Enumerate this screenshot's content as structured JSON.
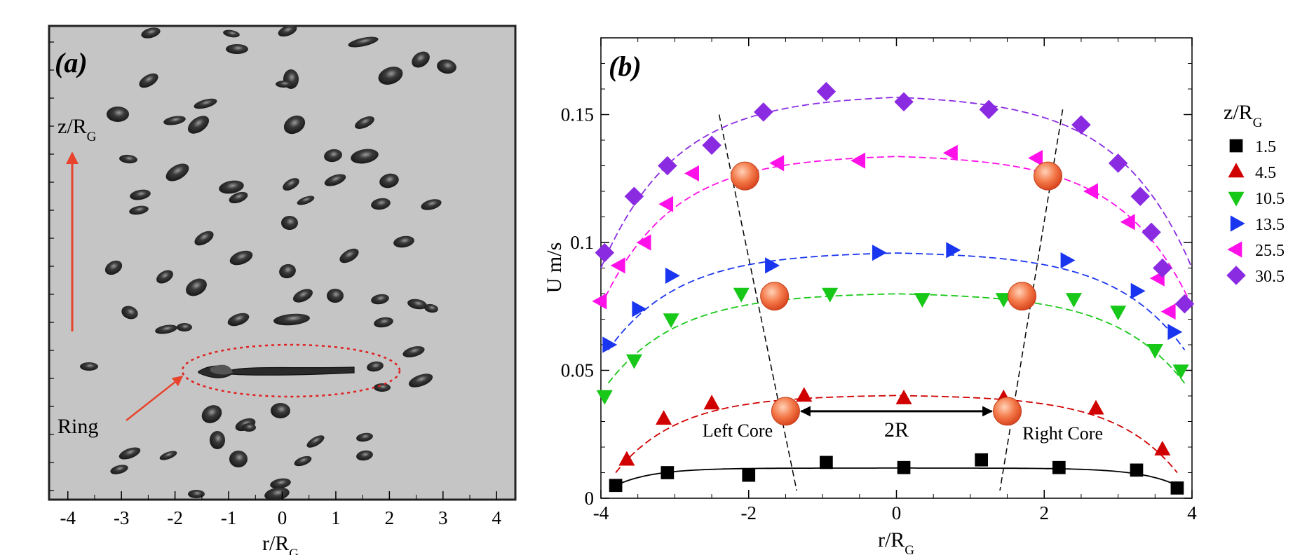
{
  "chart_data": [
    {
      "panel": "(a)",
      "type": "image",
      "xlabel": "r/R",
      "xlabel_sub": "G",
      "ylabel": "z/R",
      "ylabel_sub": "G",
      "xticks": [
        -4,
        -3,
        -2,
        -1,
        0,
        1,
        2,
        3,
        4
      ],
      "xlim": [
        -4.35,
        4.35
      ],
      "annotations": {
        "ring": "Ring"
      },
      "colors": {
        "background": "#c5c5c5",
        "arrow": "#e8432c",
        "ring_outline": "#e02020"
      }
    },
    {
      "panel": "(b)",
      "type": "scatter",
      "xlabel": "r/R",
      "xlabel_sub": "G",
      "ylabel": "U m/s",
      "xlim": [
        -4,
        4
      ],
      "ylim": [
        0,
        0.18
      ],
      "xticks": [
        -4,
        -2,
        0,
        2,
        4
      ],
      "yticks": [
        0,
        0.05,
        0.1,
        0.15
      ],
      "ytick_labels": [
        "0",
        "0.05",
        "0.1",
        "0.15"
      ],
      "legend": {
        "title": "z/R",
        "title_sub": "G",
        "position": "right"
      },
      "series": [
        {
          "name": "1.5",
          "marker": "square",
          "color": "#000000",
          "line": "solid",
          "points": [
            [
              -3.8,
              0.005
            ],
            [
              -3.1,
              0.01
            ],
            [
              -2.0,
              0.009
            ],
            [
              -0.95,
              0.014
            ],
            [
              0.1,
              0.012
            ],
            [
              1.15,
              0.015
            ],
            [
              2.2,
              0.012
            ],
            [
              3.25,
              0.011
            ],
            [
              3.8,
              0.004
            ]
          ],
          "fit": {
            "peak": 0.0118,
            "edge": 0.005,
            "span": 3.8,
            "w": 0.5
          }
        },
        {
          "name": "4.5",
          "marker": "triangle-up",
          "color": "#d00000",
          "line": "dashed",
          "points": [
            [
              -3.65,
              0.015
            ],
            [
              -3.15,
              0.031
            ],
            [
              -2.5,
              0.037
            ],
            [
              -1.25,
              0.04
            ],
            [
              0.1,
              0.039
            ],
            [
              1.45,
              0.039
            ],
            [
              2.7,
              0.035
            ],
            [
              3.6,
              0.019
            ]
          ],
          "fit": {
            "peak": 0.0405,
            "edge": 0.01,
            "span": 3.8,
            "w": 0.85
          }
        },
        {
          "name": "10.5",
          "marker": "triangle-down",
          "color": "#18c818",
          "line": "dashed",
          "points": [
            [
              -3.95,
              0.04
            ],
            [
              -3.55,
              0.054
            ],
            [
              -3.05,
              0.07
            ],
            [
              -2.1,
              0.08
            ],
            [
              -0.9,
              0.08
            ],
            [
              0.35,
              0.078
            ],
            [
              1.45,
              0.078
            ],
            [
              2.4,
              0.078
            ],
            [
              3.0,
              0.073
            ],
            [
              3.5,
              0.058
            ],
            [
              3.85,
              0.05
            ]
          ],
          "fit": {
            "peak": 0.0805,
            "edge": 0.045,
            "span": 3.9,
            "w": 0.95
          }
        },
        {
          "name": "13.5",
          "marker": "triangle-right",
          "color": "#1a35f0",
          "line": "dashed",
          "points": [
            [
              -3.9,
              0.06
            ],
            [
              -3.5,
              0.074
            ],
            [
              -3.05,
              0.087
            ],
            [
              -1.7,
              0.091
            ],
            [
              -0.25,
              0.096
            ],
            [
              0.75,
              0.097
            ],
            [
              2.3,
              0.093
            ],
            [
              3.25,
              0.081
            ],
            [
              3.75,
              0.065
            ]
          ],
          "fit": {
            "peak": 0.0965,
            "edge": 0.058,
            "span": 3.9,
            "w": 0.95
          }
        },
        {
          "name": "25.5",
          "marker": "triangle-left",
          "color": "#ff10e8",
          "line": "dashed",
          "points": [
            [
              -4.0,
              0.077
            ],
            [
              -3.75,
              0.091
            ],
            [
              -3.4,
              0.1
            ],
            [
              -3.1,
              0.115
            ],
            [
              -2.75,
              0.127
            ],
            [
              -1.6,
              0.131
            ],
            [
              -0.5,
              0.132
            ],
            [
              0.75,
              0.135
            ],
            [
              1.9,
              0.133
            ],
            [
              2.65,
              0.12
            ],
            [
              3.15,
              0.108
            ],
            [
              3.55,
              0.086
            ],
            [
              3.7,
              0.073
            ]
          ],
          "fit": {
            "peak": 0.1345,
            "edge": 0.075,
            "span": 4.0,
            "w": 0.95
          }
        },
        {
          "name": "30.5",
          "marker": "diamond",
          "color": "#8a2be2",
          "line": "dashed",
          "points": [
            [
              -3.95,
              0.096
            ],
            [
              -3.55,
              0.118
            ],
            [
              -3.1,
              0.13
            ],
            [
              -2.5,
              0.138
            ],
            [
              -1.8,
              0.151
            ],
            [
              -0.95,
              0.159
            ],
            [
              0.1,
              0.155
            ],
            [
              1.25,
              0.152
            ],
            [
              2.5,
              0.146
            ],
            [
              3.0,
              0.131
            ],
            [
              3.3,
              0.118
            ],
            [
              3.45,
              0.104
            ],
            [
              3.6,
              0.09
            ],
            [
              3.9,
              0.076
            ]
          ],
          "fit": {
            "peak": 0.158,
            "edge": 0.09,
            "span": 4.0,
            "w": 1.0
          }
        }
      ],
      "cores": {
        "color": "#e8582c",
        "points": [
          [
            -2.05,
            0.126
          ],
          [
            -1.65,
            0.079
          ],
          [
            -1.5,
            0.034
          ],
          [
            2.05,
            0.126
          ],
          [
            1.7,
            0.079
          ],
          [
            1.5,
            0.034
          ]
        ],
        "left_line": [
          [
            -2.4,
            0.15
          ],
          [
            -1.35,
            0.003
          ]
        ],
        "right_line": [
          [
            2.25,
            0.152
          ],
          [
            1.4,
            0.003
          ]
        ]
      },
      "annotations": {
        "left_core": "Left Core",
        "right_core": "Right Core",
        "span_label": "2R",
        "arrow_from": [
          -1.5,
          0.034
        ],
        "arrow_to": [
          1.5,
          0.034
        ]
      }
    }
  ]
}
